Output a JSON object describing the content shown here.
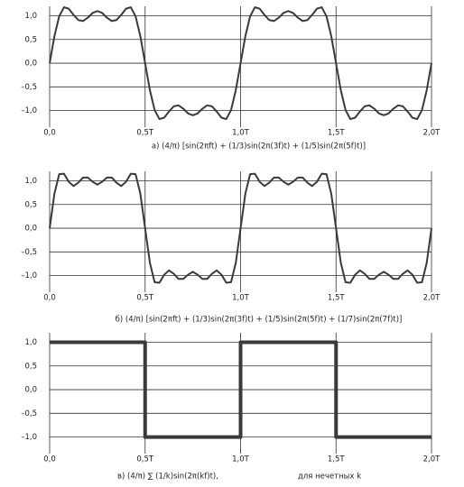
{
  "chart_data": [
    {
      "type": "line",
      "title": "а) (4/π) [sin(2πft) + (1/3)sin(2π(3f)t) + (1/5)sin(2π(5f)t)]",
      "x": [
        0,
        0.025,
        0.05,
        0.075,
        0.1,
        0.125,
        0.15,
        0.175,
        0.2,
        0.225,
        0.25,
        0.275,
        0.3,
        0.325,
        0.35,
        0.375,
        0.4,
        0.425,
        0.45,
        0.475,
        0.5,
        0.525,
        0.55,
        0.575,
        0.6,
        0.625,
        0.65,
        0.675,
        0.7,
        0.725,
        0.75,
        0.775,
        0.8,
        0.825,
        0.85,
        0.875,
        0.9,
        0.925,
        0.95,
        0.975,
        1,
        1.025,
        1.05,
        1.075,
        1.1,
        1.125,
        1.15,
        1.175,
        1.2,
        1.225,
        1.25,
        1.275,
        1.3,
        1.325,
        1.35,
        1.375,
        1.4,
        1.425,
        1.45,
        1.475,
        1.5,
        1.525,
        1.55,
        1.575,
        1.6,
        1.625,
        1.65,
        1.675,
        1.7,
        1.725,
        1.75,
        1.775,
        1.8,
        1.825,
        1.85,
        1.875,
        1.9,
        1.925,
        1.95,
        1.975,
        2
      ],
      "values": [
        0,
        0.57,
        0.99,
        1.18,
        1.15,
        1.02,
        0.91,
        0.89,
        0.96,
        1.06,
        1.1,
        1.06,
        0.96,
        0.89,
        0.91,
        1.02,
        1.15,
        1.18,
        0.99,
        0.57,
        0,
        -0.57,
        -0.99,
        -1.18,
        -1.15,
        -1.02,
        -0.91,
        -0.89,
        -0.96,
        -1.06,
        -1.1,
        -1.06,
        -0.96,
        -0.89,
        -0.91,
        -1.02,
        -1.15,
        -1.18,
        -0.99,
        -0.57,
        0,
        0.57,
        0.99,
        1.18,
        1.15,
        1.02,
        0.91,
        0.89,
        0.96,
        1.06,
        1.1,
        1.06,
        0.96,
        0.89,
        0.91,
        1.02,
        1.15,
        1.18,
        0.99,
        0.57,
        0,
        -0.57,
        -0.99,
        -1.18,
        -1.15,
        -1.02,
        -0.91,
        -0.89,
        -0.96,
        -1.06,
        -1.1,
        -1.06,
        -0.96,
        -0.89,
        -0.91,
        -1.02,
        -1.15,
        -1.18,
        -0.99,
        -0.57,
        0
      ],
      "color": "#3a3a3a",
      "line_width": 2,
      "xlim": [
        0,
        2
      ],
      "xticks": [
        {
          "value": 0,
          "label": "0,0"
        },
        {
          "value": 0.5,
          "label": "0,5T"
        },
        {
          "value": 1,
          "label": "1,0T"
        },
        {
          "value": 1.5,
          "label": "1,5T"
        },
        {
          "value": 2,
          "label": "2,0T"
        }
      ],
      "ylim": [
        -1.35,
        1.2
      ],
      "yticks": [
        {
          "value": 1,
          "label": "1,0"
        },
        {
          "value": 0.5,
          "label": "0,5"
        },
        {
          "value": 0,
          "label": "0,0"
        },
        {
          "value": -0.5,
          "label": "–0,5"
        },
        {
          "value": -1,
          "label": "–1,0"
        }
      ],
      "grid": true
    },
    {
      "type": "line",
      "title": "б) (4/π) [sin(2πft) + (1/3)sin(2π(3f)t) + (1/5)sin(2π(5f)t) + (1/7)sin(2π(7f)t)]",
      "x": [
        0,
        0.025,
        0.05,
        0.075,
        0.1,
        0.125,
        0.15,
        0.175,
        0.2,
        0.225,
        0.25,
        0.275,
        0.3,
        0.325,
        0.35,
        0.375,
        0.4,
        0.425,
        0.45,
        0.475,
        0.5,
        0.525,
        0.55,
        0.575,
        0.6,
        0.625,
        0.65,
        0.675,
        0.7,
        0.725,
        0.75,
        0.775,
        0.8,
        0.825,
        0.85,
        0.875,
        0.9,
        0.925,
        0.95,
        0.975,
        1,
        1.025,
        1.05,
        1.075,
        1.1,
        1.125,
        1.15,
        1.175,
        1.2,
        1.225,
        1.25,
        1.275,
        1.3,
        1.325,
        1.35,
        1.375,
        1.4,
        1.425,
        1.45,
        1.475,
        1.5,
        1.525,
        1.55,
        1.575,
        1.6,
        1.625,
        1.65,
        1.675,
        1.7,
        1.725,
        1.75,
        1.775,
        1.8,
        1.825,
        1.85,
        1.875,
        1.9,
        1.925,
        1.95,
        1.975,
        2
      ],
      "values": [
        0,
        0.73,
        1.14,
        1.15,
        0.98,
        0.89,
        0.96,
        1.07,
        1.07,
        0.98,
        0.92,
        0.98,
        1.07,
        1.07,
        0.96,
        0.89,
        0.98,
        1.15,
        1.14,
        0.73,
        0,
        -0.73,
        -1.14,
        -1.15,
        -0.98,
        -0.89,
        -0.96,
        -1.07,
        -1.07,
        -0.98,
        -0.92,
        -0.98,
        -1.07,
        -1.07,
        -0.96,
        -0.89,
        -0.98,
        -1.15,
        -1.14,
        -0.73,
        0,
        0.73,
        1.14,
        1.15,
        0.98,
        0.89,
        0.96,
        1.07,
        1.07,
        0.98,
        0.92,
        0.98,
        1.07,
        1.07,
        0.96,
        0.89,
        0.98,
        1.15,
        1.14,
        0.73,
        0,
        -0.73,
        -1.14,
        -1.15,
        -0.98,
        -0.89,
        -0.96,
        -1.07,
        -1.07,
        -0.98,
        -0.92,
        -0.98,
        -1.07,
        -1.07,
        -0.96,
        -0.89,
        -0.98,
        -1.15,
        -1.14,
        -0.73,
        0
      ],
      "color": "#3a3a3a",
      "line_width": 2,
      "xlim": [
        0,
        2
      ],
      "xticks": [
        {
          "value": 0,
          "label": "0,0"
        },
        {
          "value": 0.5,
          "label": "0,5T"
        },
        {
          "value": 1,
          "label": "1,0T"
        },
        {
          "value": 1.5,
          "label": "1,5T"
        },
        {
          "value": 2,
          "label": "2,0T"
        }
      ],
      "ylim": [
        -1.35,
        1.2
      ],
      "yticks": [
        {
          "value": 1,
          "label": "1,0"
        },
        {
          "value": 0.5,
          "label": "0,5"
        },
        {
          "value": 0,
          "label": "0,0"
        },
        {
          "value": -0.5,
          "label": "–0,5"
        },
        {
          "value": -1,
          "label": "–1,0"
        }
      ],
      "grid": true
    },
    {
      "type": "line",
      "title": "в) (4/π) ∑ (1/k)sin(2π(kf)t),",
      "annotation": "для нечетных k",
      "x": [
        0,
        0.5,
        0.5,
        1,
        1,
        1.5,
        1.5,
        2
      ],
      "values": [
        1,
        1,
        -1,
        -1,
        1,
        1,
        -1,
        -1
      ],
      "color": "#3a3a3a",
      "line_width": 4,
      "xlim": [
        0,
        2
      ],
      "xticks": [
        {
          "value": 0,
          "label": "0,0"
        },
        {
          "value": 0.5,
          "label": "0,5T"
        },
        {
          "value": 1,
          "label": "1,0T"
        },
        {
          "value": 1.5,
          "label": "1,5T"
        },
        {
          "value": 2,
          "label": "2,0T"
        }
      ],
      "ylim": [
        -1.35,
        1.2
      ],
      "yticks": [
        {
          "value": 1,
          "label": "1,0"
        },
        {
          "value": 0.5,
          "label": "0,5"
        },
        {
          "value": 0,
          "label": "0,0"
        },
        {
          "value": -0.5,
          "label": "–0,5"
        },
        {
          "value": -1,
          "label": "–1,0"
        }
      ],
      "grid": true
    }
  ]
}
